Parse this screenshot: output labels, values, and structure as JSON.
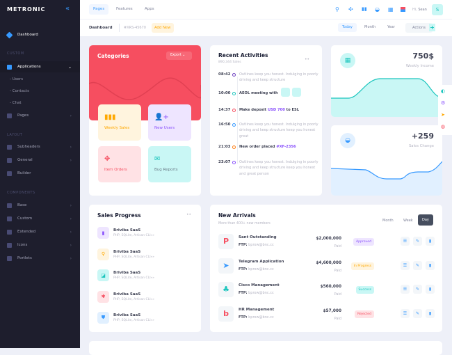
{
  "brand": "METRONIC",
  "sidebar": {
    "dashboard": "Dashboard",
    "sections": [
      "CUSTOM",
      "LAYOUT",
      "COMPONENTS"
    ],
    "applications": "Applications",
    "subitems": [
      "Users",
      "Contacts",
      "Chat"
    ],
    "pages": "Pages",
    "layout_items": [
      "Subheaders",
      "General",
      "Builder"
    ],
    "component_items": [
      "Base",
      "Custom",
      "Extended",
      "Icons",
      "Portlets"
    ]
  },
  "header": {
    "nav": [
      "Pages",
      "Features",
      "Apps"
    ],
    "greeting": "Hi,",
    "user": "Sean",
    "avatar": "S"
  },
  "subheader": {
    "title": "Dashboard",
    "code": "#XRS-45670",
    "add_new": "Add New",
    "ranges": [
      "Today",
      "Month",
      "Year"
    ],
    "actions": "Actions"
  },
  "categories": {
    "title": "Categories",
    "export": "Export",
    "tiles": [
      "Weekly Sales",
      "New Users",
      "Item Orders",
      "Bug Reports"
    ]
  },
  "activities": {
    "title": "Recent Activities",
    "subtitle": "890,344 Sales",
    "items": [
      {
        "time": "08:42",
        "text": "Outlines keep you honest. Indulging in poorly driving and keep structure",
        "color": "#6f42c1"
      },
      {
        "time": "10:00",
        "text": "AEOL meeting with",
        "color": "#1bc5bd"
      },
      {
        "time": "14:37",
        "pre": "Make deposit ",
        "hl": "USD 700",
        "post": " to ESL",
        "color": "#f64e60"
      },
      {
        "time": "16:50",
        "text": "Outlines keep you honest. Indulging in poorly driving and keep structure keep you honest great",
        "color": "#3699ff"
      },
      {
        "time": "21:03",
        "pre": "New order placed ",
        "hl": "#XF-2356",
        "post": "",
        "color": "#fd7e14"
      },
      {
        "time": "23:07",
        "text": "Outlines keep you honest. Indulging in poorly driving and keep structure keep you honest and great person",
        "color": "#8950fc"
      }
    ]
  },
  "weekly_income": {
    "value": "750$",
    "label": "Weekly Income"
  },
  "sales_change": {
    "value": "+259",
    "label": "Sales Change"
  },
  "sales_progress": {
    "title": "Sales Progress",
    "items": [
      {
        "name": "Briviba SaaS",
        "desc": "PHP, SQLite, Artisan CLI»»"
      },
      {
        "name": "Briviba SaaS",
        "desc": "PHP, SQLite, Artisan CLI»»"
      },
      {
        "name": "Briviba SaaS",
        "desc": "PHP, SQLite, Artisan CLI»»"
      },
      {
        "name": "Briviba SaaS",
        "desc": "PHP, SQLite, Artisan CLI»»"
      },
      {
        "name": "Briviba SaaS",
        "desc": "PHP, SQLite, Artisan CLI»»"
      }
    ]
  },
  "new_arrivals": {
    "title": "New Arrivals",
    "subtitle": "More than 400+ new members",
    "tabs": [
      "Month",
      "Week",
      "Day"
    ],
    "active_tab": "Day",
    "ftp_label": "FTP:",
    "rows": [
      {
        "name": "Sant Outstanding",
        "ftp": "bprow@bnc.cc",
        "amount": "$2,000,000",
        "paid": "Paid",
        "status": "Approved"
      },
      {
        "name": "Telegram Application",
        "ftp": "bprow@bnc.cc",
        "amount": "$4,600,000",
        "paid": "Paid",
        "status": "In Progress"
      },
      {
        "name": "Cisco Management",
        "ftp": "bprow@bnc.cc",
        "amount": "$560,000",
        "paid": "Paid",
        "status": "Success"
      },
      {
        "name": "HR Management",
        "ftp": "bprow@bnc.cc",
        "amount": "$57,000",
        "paid": "Paid",
        "status": "Rejected"
      }
    ]
  }
}
